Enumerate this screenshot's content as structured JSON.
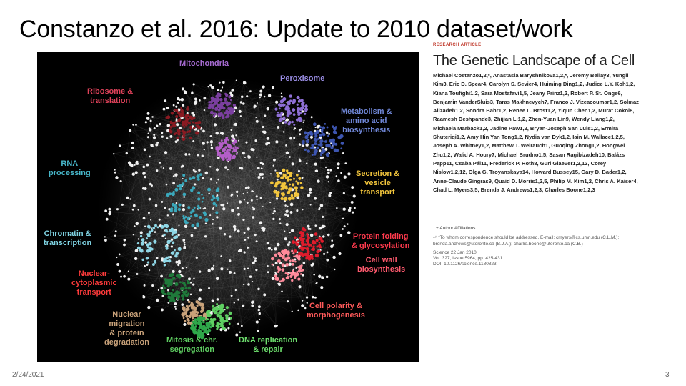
{
  "title": "Constanzo et al. 2016: Update to 2010 dataset/work",
  "figure": {
    "labels": [
      {
        "id": "mitochondria",
        "text": "Mitochondria",
        "color": "#a66bd1"
      },
      {
        "id": "peroxisome",
        "text": "Peroxisome",
        "color": "#9b8ee6"
      },
      {
        "id": "ribosome",
        "text": "Ribosome &\ntranslation",
        "color": "#e0425a"
      },
      {
        "id": "metabolism",
        "text": "Metabolism &\namino acid\nbiosynthesis",
        "color": "#6f86d6"
      },
      {
        "id": "rna",
        "text": "RNA\nprocessing",
        "color": "#47b6c9"
      },
      {
        "id": "secretion",
        "text": "Secretion &\nvesicle\ntransport",
        "color": "#f2c53c"
      },
      {
        "id": "chromatin",
        "text": "Chromatin &\ntranscription",
        "color": "#7fd3e3"
      },
      {
        "id": "protein-folding",
        "text": "Protein folding\n& glycosylation",
        "color": "#ff3a4d"
      },
      {
        "id": "cell-wall",
        "text": "Cell wall\nbiosynthesis",
        "color": "#ff5a6e"
      },
      {
        "id": "nuclear-cyto",
        "text": "Nuclear-\ncytoplasmic\ntransport",
        "color": "#ff3b3b"
      },
      {
        "id": "cell-polarity",
        "text": "Cell polarity &\nmorphogenesis",
        "color": "#ff5a5a"
      },
      {
        "id": "nuclear-migration",
        "text": "Nuclear\nmigration\n& protein\ndegradation",
        "color": "#c9a27a"
      },
      {
        "id": "mitosis",
        "text": "Mitosis & chr.\nsegregation",
        "color": "#5fcf62"
      },
      {
        "id": "dna",
        "text": "DNA replication\n& repair",
        "color": "#6ee06e"
      }
    ]
  },
  "article": {
    "kicker": "RESEARCH ARTICLE",
    "headline": "The Genetic Landscape of a Cell",
    "authors": "Michael Costanzo1,2,*, Anastasia Baryshnikova1,2,*, Jeremy Bellay3, Yungil Kim3, Eric D. Spear4, Carolyn S. Sevier4, Huiming Ding1,2, Judice L.Y. Koh1,2, Kiana Toufighi1,2, Sara Mostafavi1,5, Jeany Prinz1,2, Robert P. St. Onge6, Benjamin VanderSluis3, Taras Makhnevych7, Franco J. Vizeacoumar1,2, Solmaz Alizadeh1,2, Sondra Bahr1,2, Renee L. Brost1,2, Yiqun Chen1,2, Murat Cokol8, Raamesh Deshpande3, Zhijian Li1,2, Zhen-Yuan Lin9, Wendy Liang1,2, Michaela Marback1,2, Jadine Paw1,2, Bryan-Joseph San Luis1,2, Ermira Shuteriqi1,2, Amy Hin Yan Tong1,2, Nydia van Dyk1,2, Iain M. Wallace1,2,5, Joseph A. Whitney1,2, Matthew T. Weirauch1, Guoqing Zhong1,2, Hongwei Zhu1,2, Walid A. Houry7, Michael Brudno1,5, Sasan Ragibizadeh10, Balázs Papp11, Csaba Pál11, Frederick P. Roth8, Guri Giaever1,2,12, Corey Nislow1,2,12, Olga G. Troyanskaya14, Howard Bussey15, Gary D. Bader1,2, Anne-Claude Gingras9, Quaid D. Morris1,2,5, Philip M. Kim1,2, Chris A. Kaiser4, Chad L. Myers3,5, Brenda J. Andrews1,2,3, Charles Boone1,2,3",
    "affiliations": "+ Author Affiliations",
    "correspondence": "↵ *To whom correspondence should be addressed. E-mail: cmyers@cs.umn.edu (C.L.M.); brenda.andrews@utoronto.ca (B.J.A.); charlie.boone@utoronto.ca (C.B.)",
    "citation": [
      "Science 22 Jan 2010:",
      "Vol. 327, Issue 5964, pp. 425-431",
      "DOI: 10.1126/science.1180823"
    ]
  },
  "footer": {
    "date": "2/24/2021",
    "page": "3"
  }
}
